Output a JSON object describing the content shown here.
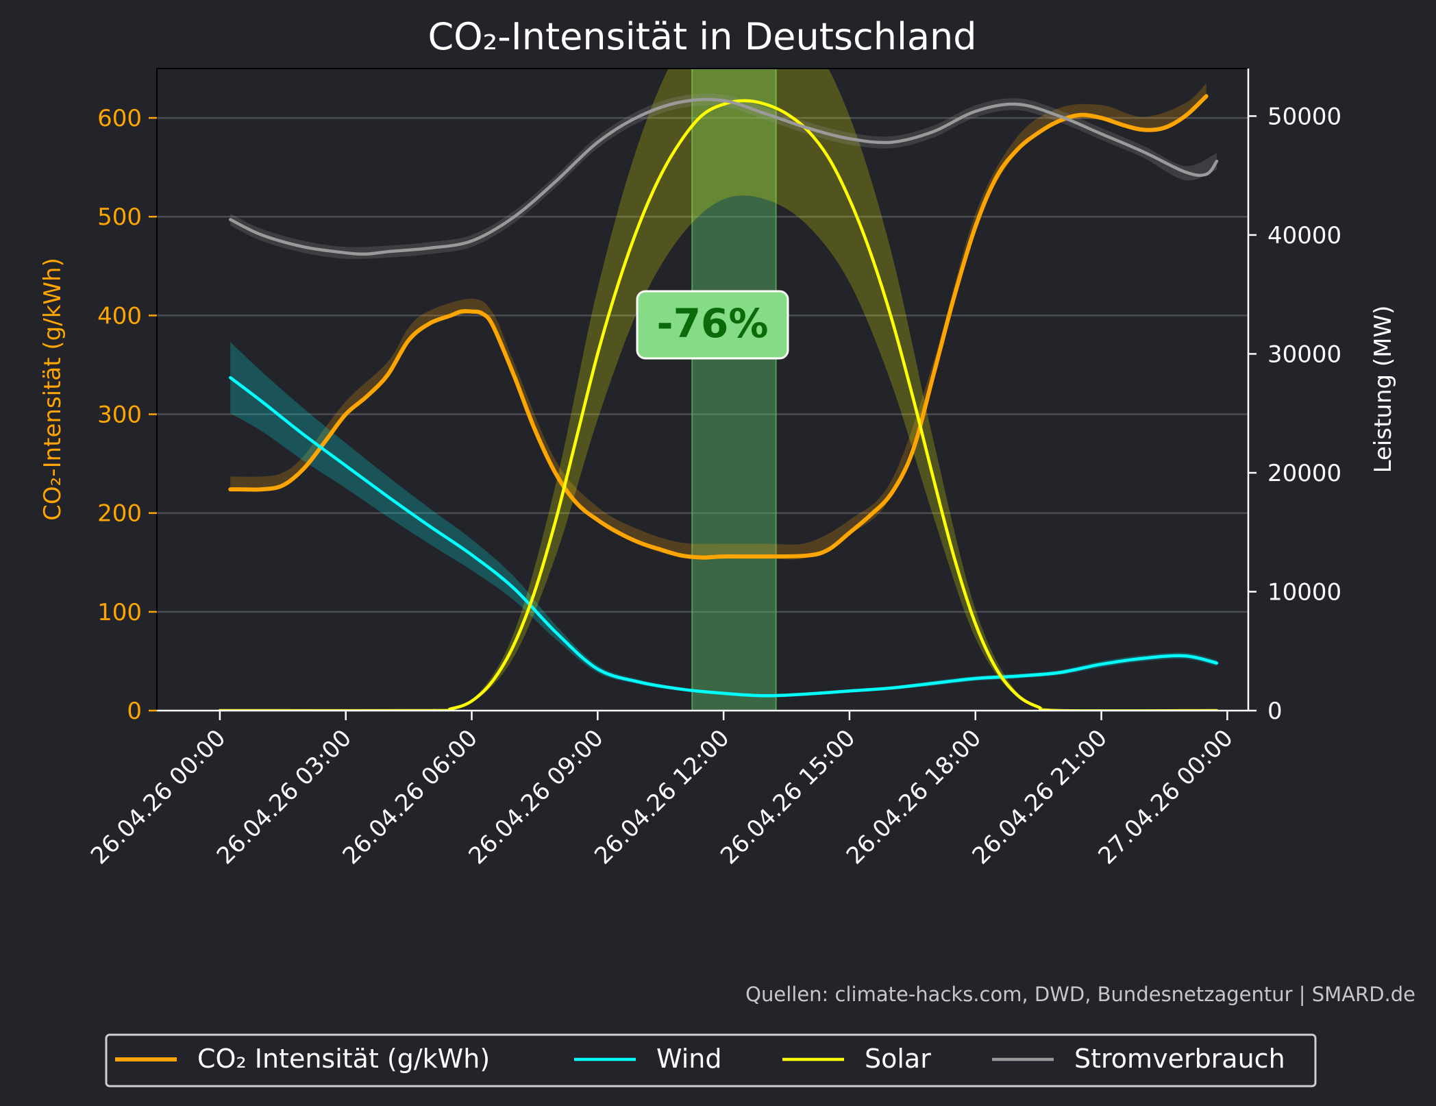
{
  "chart_data": {
    "type": "line",
    "title": "CO₂-Intensität in Deutschland",
    "ylabel_left": "CO₂-Intensität (g/kWh)",
    "ylabel_right": "Leistung (MW)",
    "ylim_left": [
      0,
      650
    ],
    "ylim_right": [
      0,
      54000
    ],
    "yticks_left": [
      0,
      100,
      200,
      300,
      400,
      500,
      600
    ],
    "yticks_right": [
      0,
      10000,
      20000,
      30000,
      40000,
      50000
    ],
    "yticks_right_labels": [
      "0",
      "10000",
      "20000",
      "30000",
      "40000",
      "50000"
    ],
    "xlim_hours": [
      -1.5,
      24.5
    ],
    "xticks": [
      {
        "h": 0,
        "label": "26.04.26 00:00"
      },
      {
        "h": 3,
        "label": "26.04.26 03:00"
      },
      {
        "h": 6,
        "label": "26.04.26 06:00"
      },
      {
        "h": 9,
        "label": "26.04.26 09:00"
      },
      {
        "h": 12,
        "label": "26.04.26 12:00"
      },
      {
        "h": 15,
        "label": "26.04.26 15:00"
      },
      {
        "h": 18,
        "label": "26.04.26 18:00"
      },
      {
        "h": 21,
        "label": "26.04.26 21:00"
      },
      {
        "h": 24,
        "label": "27.04.26 00:00"
      }
    ],
    "grid": true,
    "legend_placement": "bottom",
    "highlight": {
      "x_start": 11.25,
      "x_end": 13.25,
      "label": "-76%",
      "color": "#5dbb63"
    },
    "series": [
      {
        "name": "CO₂ Intensität (g/kWh)",
        "axis": "left",
        "color": "#ffa500",
        "points": [
          [
            0.25,
            224
          ],
          [
            0.5,
            224
          ],
          [
            1,
            224
          ],
          [
            1.5,
            228
          ],
          [
            2,
            245
          ],
          [
            2.5,
            272
          ],
          [
            3,
            300
          ],
          [
            3.5,
            318
          ],
          [
            4,
            340
          ],
          [
            4.5,
            375
          ],
          [
            5,
            392
          ],
          [
            5.5,
            400
          ],
          [
            5.75,
            404
          ],
          [
            6,
            404
          ],
          [
            6.25,
            402
          ],
          [
            6.5,
            390
          ],
          [
            7,
            340
          ],
          [
            7.5,
            285
          ],
          [
            8,
            240
          ],
          [
            8.5,
            210
          ],
          [
            9,
            193
          ],
          [
            9.5,
            180
          ],
          [
            10,
            170
          ],
          [
            10.5,
            163
          ],
          [
            11,
            157
          ],
          [
            11.5,
            155
          ],
          [
            12,
            156
          ],
          [
            13,
            156
          ],
          [
            14,
            157
          ],
          [
            14.5,
            163
          ],
          [
            15,
            180
          ],
          [
            15.5,
            198
          ],
          [
            16,
            220
          ],
          [
            16.5,
            262
          ],
          [
            17,
            340
          ],
          [
            17.5,
            420
          ],
          [
            18,
            490
          ],
          [
            18.5,
            540
          ],
          [
            19,
            568
          ],
          [
            19.5,
            585
          ],
          [
            20,
            597
          ],
          [
            20.5,
            603
          ],
          [
            21,
            600
          ],
          [
            21.5,
            593
          ],
          [
            22,
            588
          ],
          [
            22.5,
            590
          ],
          [
            23,
            602
          ],
          [
            23.5,
            622
          ]
        ],
        "band": [
          [
            0.25,
            222,
            237
          ],
          [
            1,
            222,
            237
          ],
          [
            1.5,
            226,
            241
          ],
          [
            2,
            243,
            258
          ],
          [
            3,
            298,
            313
          ],
          [
            4,
            338,
            353
          ],
          [
            4.5,
            373,
            388
          ],
          [
            5,
            390,
            405
          ],
          [
            6,
            402,
            417
          ],
          [
            6.5,
            388,
            403
          ],
          [
            7,
            338,
            353
          ],
          [
            8,
            238,
            253
          ],
          [
            9,
            191,
            206
          ],
          [
            10,
            168,
            183
          ],
          [
            11,
            155,
            170
          ],
          [
            12,
            154,
            169
          ],
          [
            13,
            154,
            169
          ],
          [
            14,
            155,
            170
          ],
          [
            15,
            178,
            193
          ],
          [
            16,
            218,
            233
          ],
          [
            17,
            338,
            353
          ],
          [
            18,
            488,
            503
          ],
          [
            19,
            566,
            581
          ],
          [
            20,
            595,
            610
          ],
          [
            21,
            598,
            613
          ],
          [
            22,
            586,
            601
          ],
          [
            23,
            600,
            615
          ],
          [
            23.5,
            620,
            635
          ]
        ]
      },
      {
        "name": "Wind",
        "axis": "right",
        "color": "#00ffff",
        "points": [
          [
            0.25,
            28000
          ],
          [
            1,
            26000
          ],
          [
            2,
            23200
          ],
          [
            3,
            20600
          ],
          [
            4,
            18000
          ],
          [
            5,
            15500
          ],
          [
            6,
            13100
          ],
          [
            7,
            10300
          ],
          [
            8,
            6600
          ],
          [
            9,
            3500
          ],
          [
            10,
            2400
          ],
          [
            11,
            1800
          ],
          [
            12,
            1450
          ],
          [
            13,
            1250
          ],
          [
            14,
            1400
          ],
          [
            15,
            1650
          ],
          [
            16,
            1900
          ],
          [
            17,
            2300
          ],
          [
            18,
            2700
          ],
          [
            19,
            2900
          ],
          [
            20,
            3200
          ],
          [
            21,
            3900
          ],
          [
            22,
            4400
          ],
          [
            23,
            4600
          ],
          [
            23.75,
            4000
          ]
        ],
        "band": [
          [
            0.25,
            25000,
            31000
          ],
          [
            1,
            23500,
            28500
          ],
          [
            2,
            21000,
            25400
          ],
          [
            3,
            18700,
            22500
          ],
          [
            4,
            16300,
            19700
          ],
          [
            5,
            14000,
            17000
          ],
          [
            6,
            11800,
            14400
          ],
          [
            7,
            9300,
            11300
          ],
          [
            8,
            6000,
            7200
          ],
          [
            9,
            3200,
            3800
          ],
          [
            10,
            2200,
            2600
          ],
          [
            11,
            1650,
            1950
          ],
          [
            12,
            1300,
            1600
          ],
          [
            13,
            1100,
            1400
          ],
          [
            14,
            1250,
            1550
          ],
          [
            15,
            1500,
            1800
          ],
          [
            16,
            1750,
            2050
          ],
          [
            17,
            2100,
            2500
          ],
          [
            18,
            2500,
            2900
          ],
          [
            19,
            2700,
            3100
          ],
          [
            20,
            3000,
            3400
          ],
          [
            21,
            3650,
            4150
          ],
          [
            22,
            4150,
            4650
          ],
          [
            23,
            4350,
            4850
          ],
          [
            23.75,
            3750,
            4250
          ]
        ]
      },
      {
        "name": "Solar",
        "axis": "right",
        "color": "#ffff00",
        "points": [
          [
            0,
            0
          ],
          [
            5,
            0
          ],
          [
            5.5,
            150
          ],
          [
            6,
            800
          ],
          [
            6.5,
            2500
          ],
          [
            7,
            5500
          ],
          [
            7.5,
            10000
          ],
          [
            8,
            16000
          ],
          [
            8.5,
            23000
          ],
          [
            9,
            30000
          ],
          [
            9.5,
            36000
          ],
          [
            10,
            41000
          ],
          [
            10.5,
            45000
          ],
          [
            11,
            48000
          ],
          [
            11.5,
            50100
          ],
          [
            12,
            51000
          ],
          [
            12.5,
            51300
          ],
          [
            13,
            51000
          ],
          [
            13.5,
            50200
          ],
          [
            14,
            48800
          ],
          [
            14.5,
            46500
          ],
          [
            15,
            43000
          ],
          [
            15.5,
            38500
          ],
          [
            16,
            33000
          ],
          [
            16.5,
            26500
          ],
          [
            17,
            19500
          ],
          [
            17.5,
            12800
          ],
          [
            18,
            7300
          ],
          [
            18.5,
            3500
          ],
          [
            19,
            1300
          ],
          [
            19.5,
            300
          ],
          [
            20,
            0
          ],
          [
            23.75,
            0
          ]
        ],
        "band": [
          [
            5,
            0,
            0
          ],
          [
            6,
            700,
            900
          ],
          [
            7,
            4500,
            6500
          ],
          [
            8,
            13000,
            19000
          ],
          [
            9,
            24500,
            35500
          ],
          [
            10,
            34000,
            48000
          ],
          [
            11,
            40000,
            56000
          ],
          [
            12,
            43000,
            59000
          ],
          [
            13,
            43000,
            59000
          ],
          [
            14,
            40800,
            56800
          ],
          [
            15,
            36000,
            50000
          ],
          [
            16,
            27500,
            38500
          ],
          [
            17,
            16300,
            22700
          ],
          [
            18,
            6100,
            8500
          ],
          [
            19,
            1100,
            1500
          ],
          [
            20,
            0,
            0
          ]
        ]
      },
      {
        "name": "Stromverbrauch",
        "axis": "right",
        "color": "#9a9a9a",
        "points": [
          [
            0.25,
            41300
          ],
          [
            1,
            40000
          ],
          [
            2,
            39000
          ],
          [
            3,
            38500
          ],
          [
            3.5,
            38400
          ],
          [
            4,
            38600
          ],
          [
            5,
            38900
          ],
          [
            6,
            39500
          ],
          [
            7,
            41500
          ],
          [
            8,
            44500
          ],
          [
            9,
            47800
          ],
          [
            10,
            50000
          ],
          [
            11,
            51200
          ],
          [
            12,
            51300
          ],
          [
            13,
            50200
          ],
          [
            14,
            49000
          ],
          [
            15,
            48100
          ],
          [
            16,
            47800
          ],
          [
            17,
            48700
          ],
          [
            18,
            50400
          ],
          [
            19,
            51000
          ],
          [
            20,
            50000
          ],
          [
            21,
            48500
          ],
          [
            22,
            47000
          ],
          [
            23,
            45300
          ],
          [
            23.5,
            45100
          ],
          [
            23.75,
            46200
          ]
        ],
        "band": [
          [
            0.25,
            40800,
            41800
          ],
          [
            1,
            39500,
            40500
          ],
          [
            2,
            38500,
            39500
          ],
          [
            3,
            38000,
            39000
          ],
          [
            4,
            38100,
            39100
          ],
          [
            5,
            38400,
            39400
          ],
          [
            6,
            39000,
            40000
          ],
          [
            7,
            41000,
            42000
          ],
          [
            8,
            44000,
            45000
          ],
          [
            9,
            47300,
            48300
          ],
          [
            10,
            49500,
            50500
          ],
          [
            11,
            50700,
            51700
          ],
          [
            12,
            50800,
            51800
          ],
          [
            13,
            49700,
            50700
          ],
          [
            14,
            48500,
            49500
          ],
          [
            15,
            47600,
            48600
          ],
          [
            16,
            47300,
            48300
          ],
          [
            17,
            48200,
            49200
          ],
          [
            18,
            49900,
            50900
          ],
          [
            19,
            50500,
            51500
          ],
          [
            20,
            49500,
            50500
          ],
          [
            21,
            48000,
            49000
          ],
          [
            22,
            46500,
            47500
          ],
          [
            23,
            44600,
            45800
          ],
          [
            23.75,
            45500,
            46900
          ]
        ]
      }
    ]
  },
  "source_text": "Quellen: climate-hacks.com, DWD, Bundesnetzagentur | SMARD.de",
  "colors": {
    "background": "#22242a",
    "plot_bg": "#22242a",
    "grid": "#4a4c52",
    "left_axis": "#ffa500",
    "right_axis": "#ffffff"
  }
}
